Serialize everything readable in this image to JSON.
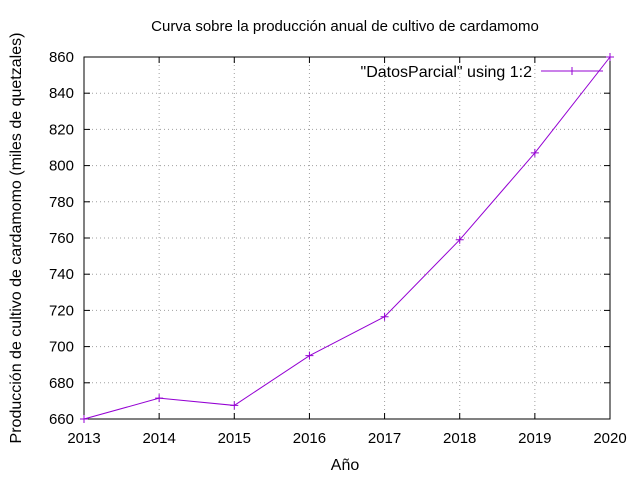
{
  "chart_data": {
    "type": "line",
    "title": "Curva sobre la producción anual de cultivo de cardamomo",
    "xlabel": "Año",
    "ylabel": "Producción de cultivo de cardamomo (miles de quetzales)",
    "xlim": [
      2013,
      2020
    ],
    "ylim": [
      660,
      860
    ],
    "xticks": [
      2013,
      2014,
      2015,
      2016,
      2017,
      2018,
      2019,
      2020
    ],
    "yticks": [
      660,
      680,
      700,
      720,
      740,
      760,
      780,
      800,
      820,
      840,
      860
    ],
    "grid": true,
    "legend_position": "top-right",
    "series": [
      {
        "name": "\"DatosParcial\" using 1:2",
        "color": "#9400d3",
        "marker": "plus",
        "x": [
          2013,
          2014,
          2015,
          2016,
          2017,
          2018,
          2019,
          2020
        ],
        "y": [
          660,
          671.5,
          667.5,
          695,
          716.5,
          759,
          807,
          860
        ]
      }
    ]
  }
}
